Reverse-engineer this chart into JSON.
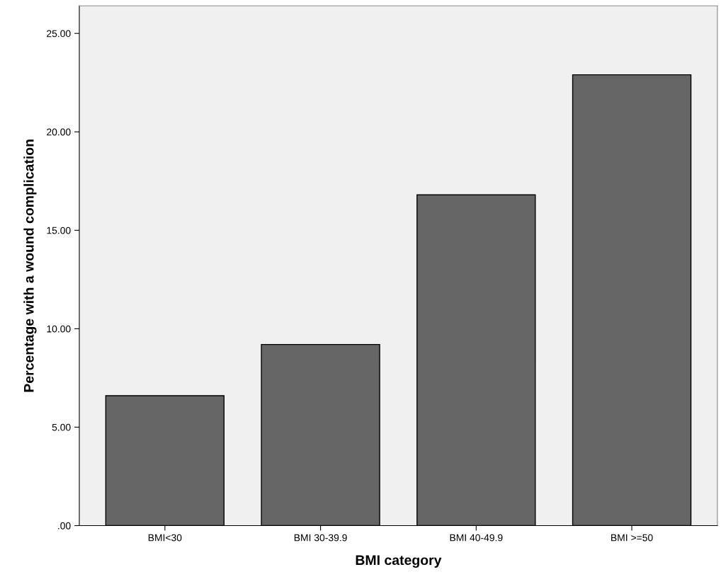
{
  "chart_data": {
    "type": "bar",
    "xlabel": "BMI category",
    "ylabel": "Percentage with a wound complication",
    "categories": [
      "BMI<30",
      "BMI 30-39.9",
      "BMI 40-49.9",
      "BMI >=50"
    ],
    "values": [
      6.6,
      9.2,
      16.8,
      22.9
    ],
    "color": "#666666",
    "ylim": [
      0,
      26.4
    ],
    "yticks": [
      {
        "value": 0,
        "label": ".00"
      },
      {
        "value": 5,
        "label": "5.00"
      },
      {
        "value": 10,
        "label": "10.00"
      },
      {
        "value": 15,
        "label": "15.00"
      },
      {
        "value": 20,
        "label": "20.00"
      },
      {
        "value": 25,
        "label": "25.00"
      }
    ],
    "grid": false,
    "legend": false
  }
}
